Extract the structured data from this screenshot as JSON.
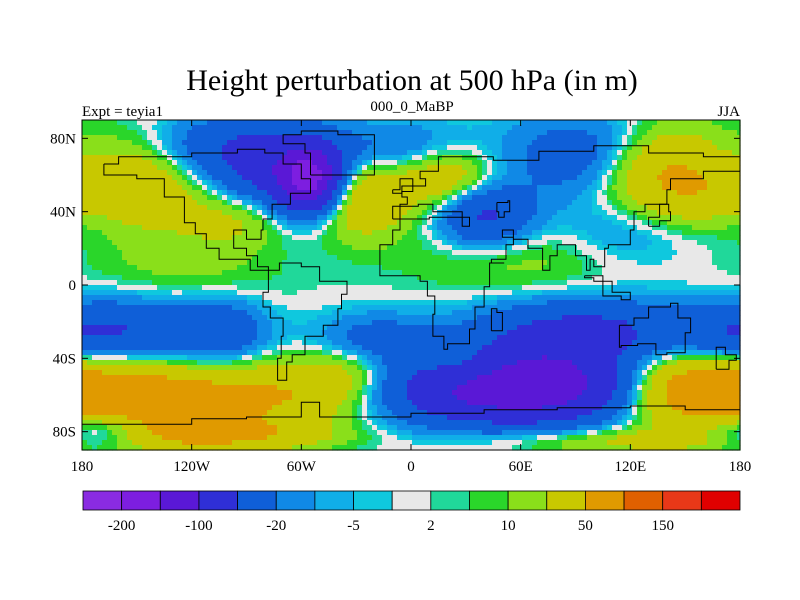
{
  "title": "Height perturbation at 500 hPa (in m)",
  "subtitle_left": "Expt = teyia1",
  "subtitle_center": "000_0_MaBP",
  "subtitle_right": "JJA",
  "map": {
    "projection": "cylindrical-equidistant",
    "lon_range": [
      -180,
      180
    ],
    "lat_range": [
      -90,
      90
    ],
    "lon_ticks": [
      {
        "value": -180,
        "label": "180"
      },
      {
        "value": -120,
        "label": "120W"
      },
      {
        "value": -60,
        "label": "60W"
      },
      {
        "value": 0,
        "label": "0"
      },
      {
        "value": 60,
        "label": "60E"
      },
      {
        "value": 120,
        "label": "120E"
      },
      {
        "value": 180,
        "label": "180"
      }
    ],
    "lat_ticks": [
      {
        "value": 80,
        "label": "80N"
      },
      {
        "value": 40,
        "label": "40N"
      },
      {
        "value": 0,
        "label": "0"
      },
      {
        "value": -40,
        "label": "40S"
      },
      {
        "value": -80,
        "label": "80S"
      }
    ],
    "features": [
      {
        "lon": -55,
        "lat": 58,
        "value": -150,
        "spread_lon": 12,
        "spread_lat": 12
      },
      {
        "lon": -75,
        "lat": 55,
        "value": -60,
        "spread_lon": 25,
        "spread_lat": 18
      },
      {
        "lon": 40,
        "lat": 38,
        "value": -60,
        "spread_lon": 18,
        "spread_lat": 12
      },
      {
        "lon": 95,
        "lat": 70,
        "value": -40,
        "spread_lon": 28,
        "spread_lat": 16
      },
      {
        "lon": 120,
        "lat": 30,
        "value": -20,
        "spread_lon": 30,
        "spread_lat": 14
      },
      {
        "lon": -10,
        "lat": 75,
        "value": -25,
        "spread_lon": 30,
        "spread_lat": 10
      },
      {
        "lon": 175,
        "lat": 68,
        "value": -25,
        "spread_lon": 20,
        "spread_lat": 12
      },
      {
        "lon": -100,
        "lat": 75,
        "value": -40,
        "spread_lon": 30,
        "spread_lat": 12
      },
      {
        "lon": -175,
        "lat": 38,
        "value": -15,
        "spread_lon": 18,
        "spread_lat": 12
      },
      {
        "lon": -160,
        "lat": 55,
        "value": 50,
        "spread_lon": 32,
        "spread_lat": 18
      },
      {
        "lon": -90,
        "lat": 38,
        "value": 40,
        "spread_lon": 22,
        "spread_lat": 12
      },
      {
        "lon": -30,
        "lat": 48,
        "value": 50,
        "spread_lon": 20,
        "spread_lat": 15
      },
      {
        "lon": 20,
        "lat": 58,
        "value": 40,
        "spread_lon": 18,
        "spread_lat": 12
      },
      {
        "lon": 140,
        "lat": 60,
        "value": 60,
        "spread_lon": 28,
        "spread_lat": 18
      },
      {
        "lon": 60,
        "lat": 15,
        "value": 15,
        "spread_lon": 45,
        "spread_lat": 15
      },
      {
        "lon": -120,
        "lat": 10,
        "value": 12,
        "spread_lon": 40,
        "spread_lat": 15
      },
      {
        "lon": -160,
        "lat": -25,
        "value": -50,
        "spread_lon": 28,
        "spread_lat": 12
      },
      {
        "lon": -105,
        "lat": -25,
        "value": -40,
        "spread_lon": 18,
        "spread_lat": 12
      },
      {
        "lon": -20,
        "lat": -30,
        "value": -30,
        "spread_lon": 22,
        "spread_lat": 10
      },
      {
        "lon": 95,
        "lat": -25,
        "value": -60,
        "spread_lon": 40,
        "spread_lat": 12
      },
      {
        "lon": 165,
        "lat": -30,
        "value": -20,
        "spread_lon": 18,
        "spread_lat": 10
      },
      {
        "lon": 60,
        "lat": -55,
        "value": -150,
        "spread_lon": 50,
        "spread_lat": 14
      },
      {
        "lon": -170,
        "lat": -78,
        "value": -60,
        "spread_lon": 22,
        "spread_lat": 8
      },
      {
        "lon": -145,
        "lat": -65,
        "value": 90,
        "spread_lon": 45,
        "spread_lat": 14
      },
      {
        "lon": -55,
        "lat": -58,
        "value": 40,
        "spread_lon": 30,
        "spread_lat": 12
      },
      {
        "lon": 150,
        "lat": -55,
        "value": 80,
        "spread_lon": 30,
        "spread_lat": 14
      },
      {
        "lon": -30,
        "lat": -45,
        "value": 25,
        "spread_lon": 20,
        "spread_lat": 10
      },
      {
        "lon": -100,
        "lat": -82,
        "value": 40,
        "spread_lon": 40,
        "spread_lat": 6
      },
      {
        "lon": 110,
        "lat": -85,
        "value": 25,
        "spread_lon": 50,
        "spread_lat": 5
      },
      {
        "lon": 30,
        "lat": -45,
        "value": 40,
        "spread_lon": 18,
        "spread_lat": 8
      }
    ]
  },
  "colorbar": {
    "colors": [
      "#8a2be2",
      "#7d1ee0",
      "#5a18d6",
      "#2f2fd6",
      "#0f5fd8",
      "#1089e6",
      "#10aee8",
      "#0fc8de",
      "#e8e8e8",
      "#20d89a",
      "#2ad62a",
      "#8adf1a",
      "#c8c800",
      "#e09a00",
      "#e06000",
      "#e83818",
      "#e00000"
    ],
    "boundaries": [
      -300,
      -200,
      -150,
      -100,
      -50,
      -20,
      -10,
      -5,
      -2,
      2,
      5,
      10,
      20,
      50,
      100,
      150,
      200,
      300
    ],
    "labels": [
      "-200",
      "-100",
      "-20",
      "-5",
      "2",
      "10",
      "50",
      "150"
    ]
  }
}
